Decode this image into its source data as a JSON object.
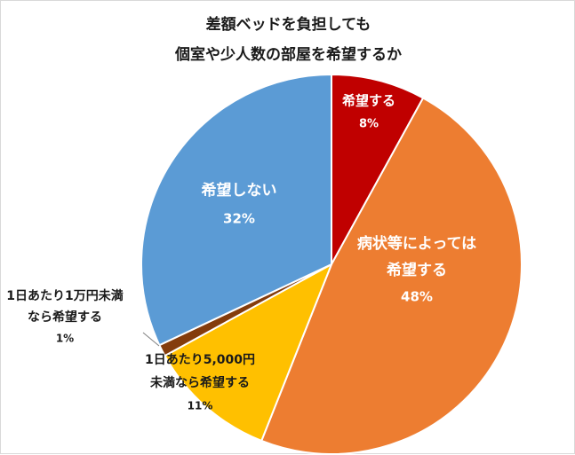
{
  "chart_data": {
    "type": "pie",
    "title_line1": "差額ベッドを負担しても",
    "title_line2": "個室や少人数の部屋を希望するか",
    "slices": [
      {
        "lines": [
          "希望する"
        ],
        "pct_label": "8%",
        "value": 8,
        "color": "#c00000"
      },
      {
        "lines": [
          "病状等によっては",
          "希望する"
        ],
        "pct_label": "48%",
        "value": 48,
        "color": "#ed7d31"
      },
      {
        "lines": [
          "1日あたり5,000円",
          "未満なら希望する"
        ],
        "pct_label": "11%",
        "value": 11,
        "color": "#ffc000"
      },
      {
        "lines": [
          "1日あたり1万円未満",
          "なら希望する"
        ],
        "pct_label": "1%",
        "value": 1,
        "color": "#843c0c"
      },
      {
        "lines": [
          "希望しない"
        ],
        "pct_label": "32%",
        "value": 32,
        "color": "#5b9bd5"
      }
    ]
  }
}
